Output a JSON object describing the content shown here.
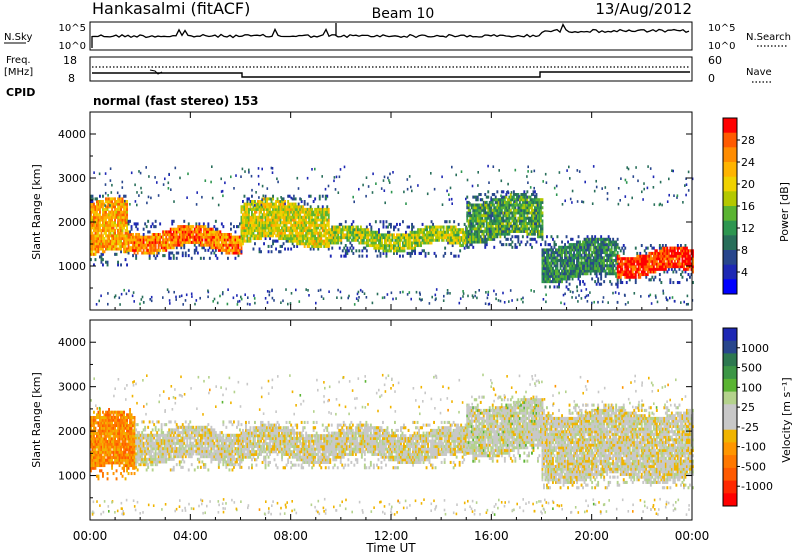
{
  "header": {
    "station": "Hankasalmi (fitACF)",
    "beam": "Beam 10",
    "date": "13/Aug/2012"
  },
  "noise_panel": {
    "left_label": "N.Sky",
    "right_label": "N.Search",
    "ticks_left": [
      "10^5",
      "10^0"
    ],
    "ticks_right": [
      "10^5",
      "10^0"
    ]
  },
  "freq_panel": {
    "left_label_line1": "Freq.",
    "left_label_line2": "[MHz]",
    "right_label": "Nave",
    "ticks_left": [
      "18",
      "8"
    ],
    "ticks_right": [
      "60",
      "0"
    ]
  },
  "cpid_panel": {
    "label": "CPID",
    "mode_text": "normal (fast stereo) 153"
  },
  "power_panel": {
    "ylabel": "Slant Range [km]",
    "colorbar_label": "Power [dB]",
    "colorbar_ticks": [
      "28",
      "24",
      "20",
      "16",
      "12",
      "8",
      "4"
    ],
    "colorbar_colors": [
      "#ff0000",
      "#ff5a00",
      "#ff8c00",
      "#ffb400",
      "#f0d200",
      "#b4c800",
      "#5ab432",
      "#2d9650",
      "#286e5a",
      "#28468c",
      "#1e28b4",
      "#0000ff"
    ]
  },
  "velocity_panel": {
    "ylabel": "Slant Range [km]",
    "colorbar_label": "Velocity [m s⁻¹]",
    "colorbar_ticks": [
      "1000",
      "500",
      "100",
      "25",
      "-25",
      "-100",
      "-500",
      "-1000"
    ],
    "colorbar_colors": [
      "#1e28b4",
      "#28468c",
      "#2d7850",
      "#3c9646",
      "#5ab432",
      "#b4d28c",
      "#c8c8c8",
      "#c8c8c8",
      "#f0b400",
      "#ff9600",
      "#ff7800",
      "#ff5a00",
      "#ff2800",
      "#ff0000"
    ]
  },
  "axes": {
    "range_ticks": [
      "1000",
      "2000",
      "3000",
      "4000"
    ],
    "time_ticks": [
      "00:00",
      "04:00",
      "08:00",
      "12:00",
      "16:00",
      "20:00",
      "00:00"
    ],
    "xlabel": "Time UT"
  },
  "chart_data": [
    {
      "type": "heatmap",
      "title": "Power [dB]",
      "x": "Time UT",
      "xlim_hours": [
        0,
        24
      ],
      "ylabel": "Slant Range [km]",
      "ylim": [
        0,
        4500
      ],
      "color_range": [
        0,
        30
      ],
      "bands": [
        {
          "t0": 0.0,
          "t1": 1.5,
          "r0": 1200,
          "r1": 2400,
          "db": 22
        },
        {
          "t0": 1.5,
          "t1": 6.0,
          "r0": 1350,
          "r1": 1800,
          "db": 24
        },
        {
          "t0": 6.0,
          "t1": 9.5,
          "r0": 1500,
          "r1": 2400,
          "db": 18
        },
        {
          "t0": 9.5,
          "t1": 15.0,
          "r0": 1400,
          "r1": 1800,
          "db": 16
        },
        {
          "t0": 15.0,
          "t1": 18.0,
          "r0": 1600,
          "r1": 2500,
          "db": 12
        },
        {
          "t0": 18.0,
          "t1": 21.0,
          "r0": 700,
          "r1": 1500,
          "db": 10
        },
        {
          "t0": 21.0,
          "t1": 24.0,
          "r0": 800,
          "r1": 1300,
          "db": 28
        }
      ]
    },
    {
      "type": "heatmap",
      "title": "Velocity [m s-1]",
      "x": "Time UT",
      "xlim_hours": [
        0,
        24
      ],
      "ylabel": "Slant Range [km]",
      "ylim": [
        0,
        4500
      ],
      "color_range": [
        -1000,
        1000
      ],
      "bands": [
        {
          "t0": 0.0,
          "t1": 1.8,
          "r0": 1100,
          "r1": 2300,
          "v": -400
        },
        {
          "t0": 1.8,
          "t1": 6.0,
          "r0": 1300,
          "r1": 2000,
          "v": 0
        },
        {
          "t0": 6.0,
          "t1": 15.0,
          "r0": 1350,
          "r1": 2000,
          "v": 0
        },
        {
          "t0": 15.0,
          "t1": 18.0,
          "r0": 1500,
          "r1": 2600,
          "v": 60
        },
        {
          "t0": 18.0,
          "t1": 24.0,
          "r0": 900,
          "r1": 2400,
          "v": 0
        }
      ]
    }
  ]
}
